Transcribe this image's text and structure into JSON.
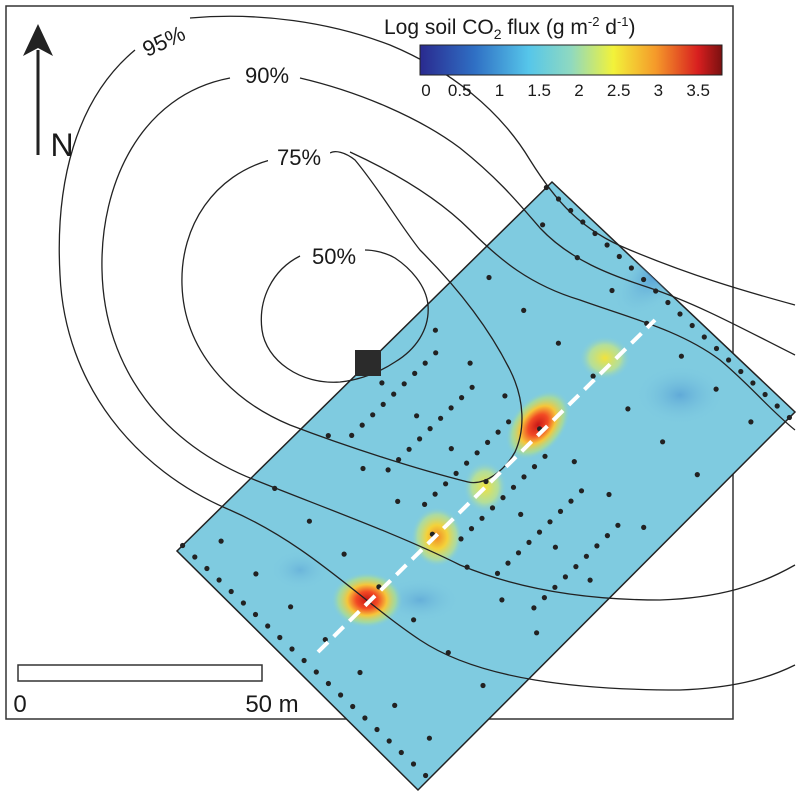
{
  "north": {
    "label": "N"
  },
  "contours": [
    {
      "label": "50%"
    },
    {
      "label": "75%"
    },
    {
      "label": "90%"
    },
    {
      "label": "95%"
    }
  ],
  "legend": {
    "title_main": "Log soil CO",
    "title_sub": "2",
    "title_rest": " flux (g m",
    "exp1": "-2",
    "title_mid": " d",
    "exp2": "-1",
    "title_end": ")",
    "ticks": [
      "0",
      "0.5",
      "1",
      "1.5",
      "2",
      "2.5",
      "3",
      "3.5"
    ],
    "range": [
      0,
      3.8
    ],
    "colors": [
      "#2a2a8f",
      "#2f6fc4",
      "#56c6ea",
      "#8fd9c0",
      "#f2f23a",
      "#f59a2a",
      "#d81f1f",
      "#7a1010"
    ]
  },
  "scale_bar": {
    "left_label": "0",
    "right_label": "50 m"
  },
  "hotspots": [
    {
      "log_flux": 3.6
    },
    {
      "log_flux": 3.0
    },
    {
      "log_flux": 2.4
    },
    {
      "log_flux": 3.4
    },
    {
      "log_flux": 2.8
    }
  ],
  "field_background_flux": 1.4,
  "colors": {
    "field_fill": "#7fcbe0",
    "contour": "#222222",
    "fault_line": "#ffffff",
    "grid_dot": "#222222"
  }
}
